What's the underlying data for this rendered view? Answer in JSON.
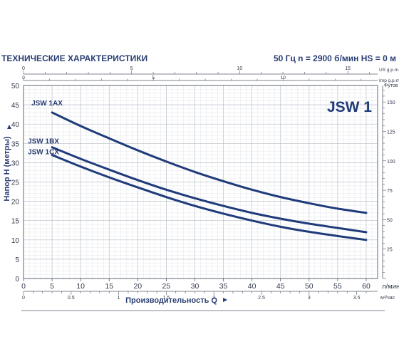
{
  "header": {
    "title": "ТЕХНИЧЕСКИЕ ХАРАКТЕРИСТИКИ",
    "conditions": "50 Гц  n = 2900 б/мин  HS = 0 м"
  },
  "chart_data": {
    "type": "line",
    "title": "JSW 1",
    "ylabel": "Напор  H (метры)",
    "xlabel": "Производительность  Q",
    "ylim": [
      0,
      50
    ],
    "xlim": [
      0,
      62
    ],
    "yticks": [
      0,
      5,
      10,
      15,
      20,
      25,
      30,
      35,
      40,
      45,
      50
    ],
    "xticks": [
      0,
      5,
      10,
      15,
      20,
      25,
      30,
      35,
      40,
      45,
      50,
      55,
      60
    ],
    "x_unit": "л/мин",
    "secondary_axes": {
      "top_us": {
        "unit": "US g.p.m.",
        "ticks": [
          {
            "label": "0",
            "v": 0
          },
          {
            "label": "5",
            "v": 5
          },
          {
            "label": "10",
            "v": 10
          },
          {
            "label": "15",
            "v": 15
          }
        ],
        "factor_lpm": 3.785
      },
      "top_imp": {
        "unit": "Imp g.p.m.",
        "ticks": [
          {
            "label": "0",
            "v": 0
          },
          {
            "label": "5",
            "v": 5
          },
          {
            "label": "10",
            "v": 10
          }
        ],
        "factor_lpm": 4.546
      },
      "bottom_m3h": {
        "unit": "м³/час",
        "ticks": [
          {
            "label": "0",
            "v": 0
          },
          {
            "label": "0.5",
            "v": 0.5
          },
          {
            "label": "1",
            "v": 1
          },
          {
            "label": "1.5",
            "v": 1.5
          },
          {
            "label": "2",
            "v": 2
          },
          {
            "label": "2.5",
            "v": 2.5
          },
          {
            "label": "3",
            "v": 3
          },
          {
            "label": "3.5",
            "v": 3.5
          }
        ],
        "factor_lpm": 16.667
      },
      "right_ft": {
        "unit": "Футов",
        "ticks": [
          {
            "label": "25",
            "v": 25
          },
          {
            "label": "50",
            "v": 50
          },
          {
            "label": "75",
            "v": 75
          },
          {
            "label": "100",
            "v": 100
          },
          {
            "label": "125",
            "v": 125
          },
          {
            "label": "150",
            "v": 150
          }
        ],
        "factor_m": 0.3048
      }
    },
    "series": [
      {
        "name": "JSW 1AX",
        "color": "#1f3b7a",
        "x": [
          5,
          10,
          15,
          20,
          25,
          30,
          35,
          40,
          45,
          50,
          55,
          60
        ],
        "y": [
          43,
          39.5,
          36.3,
          33.2,
          30.3,
          27.6,
          25.2,
          23,
          21.1,
          19.5,
          18.1,
          17
        ]
      },
      {
        "name": "JSW 1BX",
        "color": "#1f3b7a",
        "x": [
          5,
          10,
          15,
          20,
          25,
          30,
          35,
          40,
          45,
          50,
          55,
          60
        ],
        "y": [
          34,
          31,
          28.2,
          25.5,
          23,
          20.8,
          18.8,
          17,
          15.5,
          14.2,
          13.1,
          12
        ]
      },
      {
        "name": "JSW 1CX",
        "color": "#1f3b7a",
        "x": [
          5,
          10,
          15,
          20,
          25,
          30,
          35,
          40,
          45,
          50,
          55,
          60
        ],
        "y": [
          32,
          29,
          26.2,
          23.6,
          21.1,
          18.8,
          16.8,
          15,
          13.4,
          12.1,
          11,
          10
        ]
      }
    ]
  }
}
